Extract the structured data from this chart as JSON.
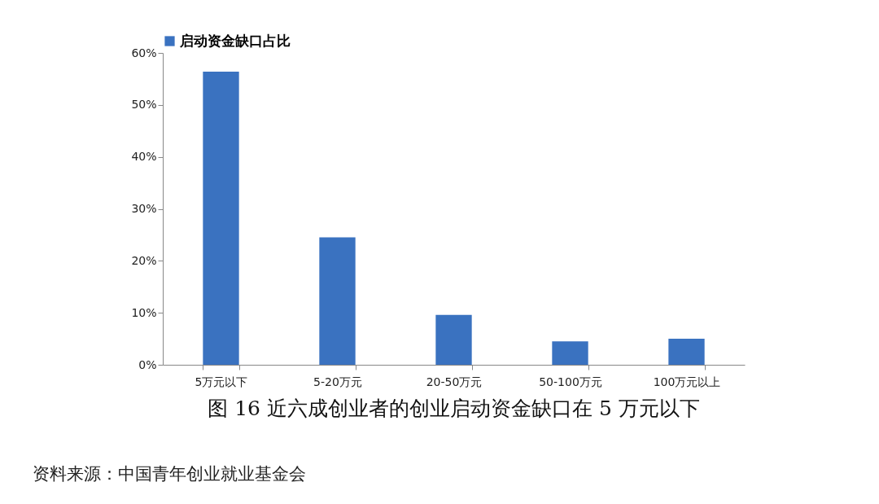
{
  "chart_data": {
    "type": "bar",
    "title": "图 16 近六成创业者的创业启动资金缺口在 5 万元以下",
    "categories": [
      "5万元以下",
      "5-20万元",
      "20-50万元",
      "50-100万元",
      "100万元以上"
    ],
    "series": [
      {
        "name": "启动资金缺口占比",
        "color": "#3a72c0",
        "values": [
          56.4,
          24.5,
          9.6,
          4.5,
          5.0
        ]
      }
    ],
    "ylim": [
      0,
      60
    ],
    "yticks": [
      {
        "value": 0,
        "label": "0%"
      },
      {
        "value": 10,
        "label": "10%"
      },
      {
        "value": 20,
        "label": "20%"
      },
      {
        "value": 30,
        "label": "30%"
      },
      {
        "value": 40,
        "label": "40%"
      },
      {
        "value": 50,
        "label": "50%"
      },
      {
        "value": 60,
        "label": "60%"
      }
    ],
    "grid": false,
    "legend": "top",
    "annotations": [
      "资料来源：中国青年创业就业基金会"
    ]
  }
}
